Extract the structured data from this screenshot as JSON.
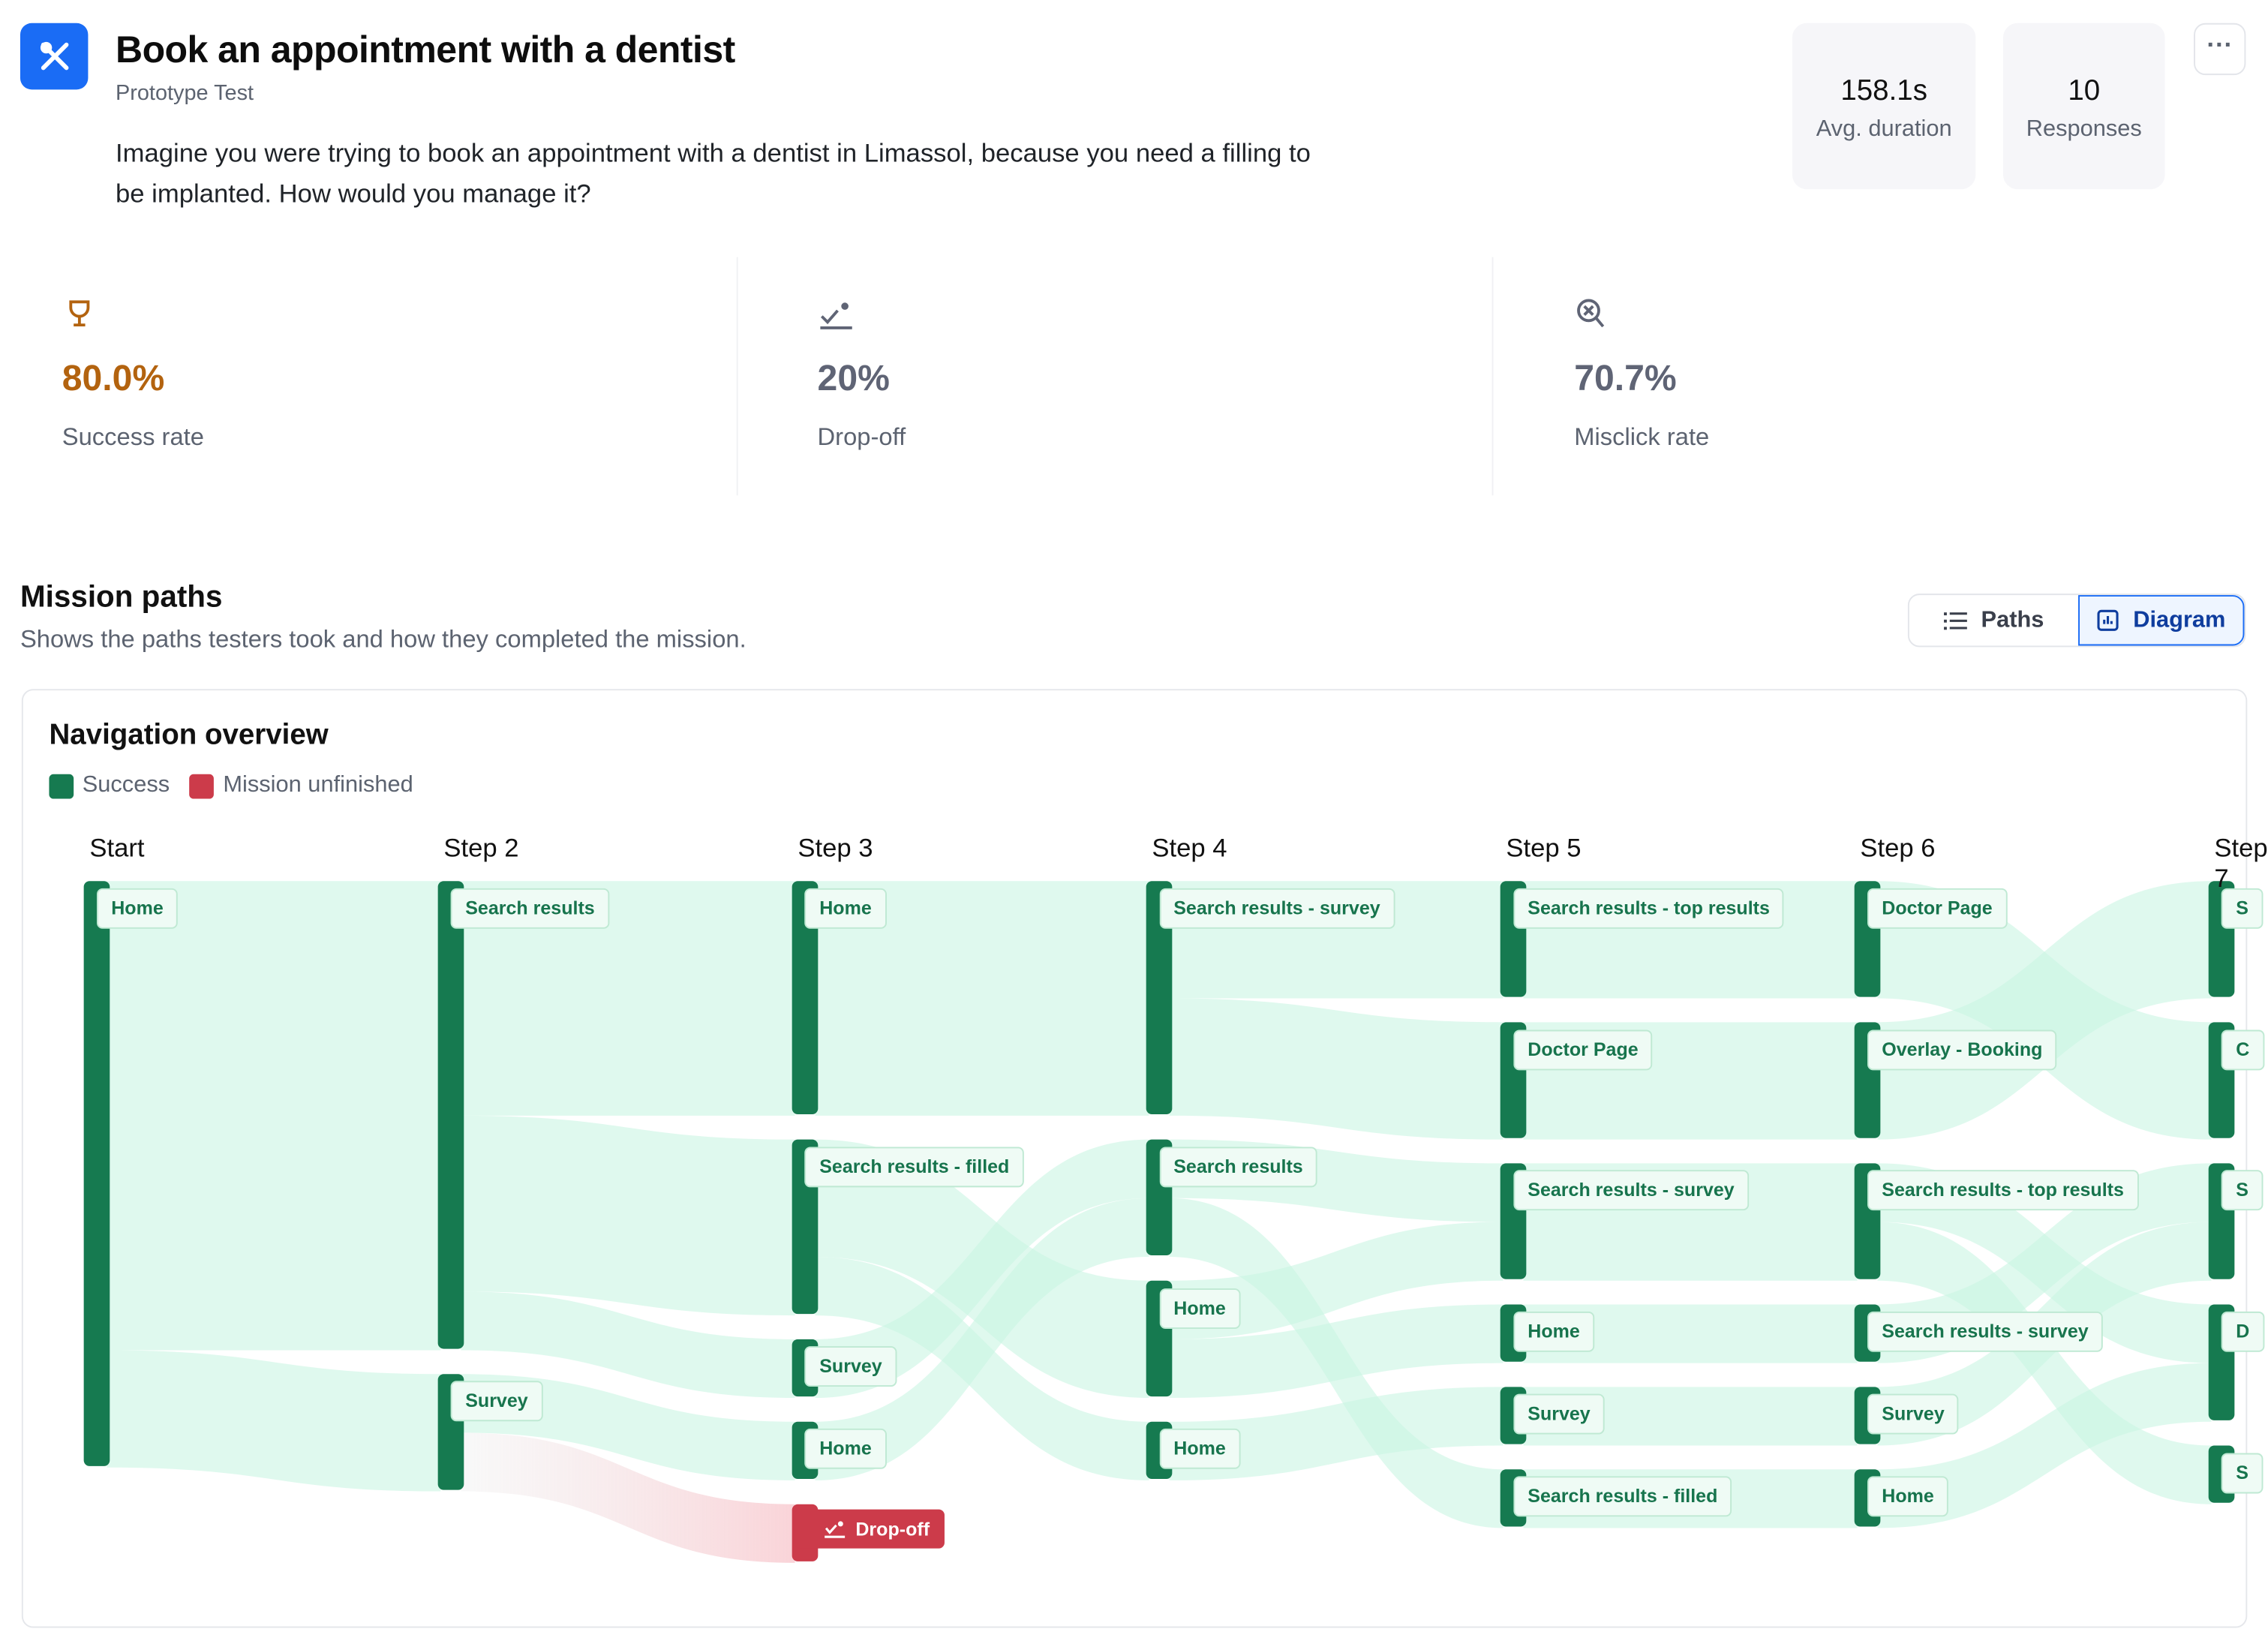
{
  "header": {
    "title": "Book an appointment with a dentist",
    "subtitle": "Prototype Test",
    "description": "Imagine you were trying to book an appointment with a dentist in Limassol, because you need a filling to be implanted. How would you manage it?",
    "logo_icon": "crossed-tools-icon",
    "brand_color": "#1a6cf5"
  },
  "stats": [
    {
      "value": "158.1s",
      "label": "Avg. duration"
    },
    {
      "value": "10",
      "label": "Responses"
    }
  ],
  "more_button": "···",
  "metrics": [
    {
      "icon": "trophy-icon",
      "value": "80.0%",
      "label": "Success rate",
      "color": "#b3630f"
    },
    {
      "icon": "drop-off-icon",
      "value": "20%",
      "label": "Drop-off",
      "color": "#5f6475"
    },
    {
      "icon": "misclick-icon",
      "value": "70.7%",
      "label": "Misclick rate",
      "color": "#5f6475"
    }
  ],
  "mission_paths": {
    "title": "Mission paths",
    "subtitle": "Shows the paths testers took and how they completed the mission.",
    "view_toggle": [
      {
        "label": "Paths",
        "icon": "list-icon",
        "selected": false
      },
      {
        "label": "Diagram",
        "icon": "chart-icon",
        "selected": true
      }
    ]
  },
  "diagram": {
    "title": "Navigation overview",
    "legend": [
      {
        "label": "Success",
        "color": "#167a50"
      },
      {
        "label": "Mission unfinished",
        "color": "#cc3b4a"
      }
    ],
    "link_color": "#c9f5e2",
    "dropoff_link_color": "#f7d4d8",
    "columns": [
      {
        "label": "Start",
        "nodes": [
          {
            "id": "a0",
            "label": "Home",
            "value": 10
          }
        ]
      },
      {
        "label": "Step 2",
        "nodes": [
          {
            "id": "b0",
            "label": "Search results",
            "value": 8
          },
          {
            "id": "b1",
            "label": "Survey",
            "value": 2
          }
        ]
      },
      {
        "label": "Step 3",
        "nodes": [
          {
            "id": "c0",
            "label": "Home",
            "value": 4
          },
          {
            "id": "c1",
            "label": "Search results - filled",
            "value": 3
          },
          {
            "id": "c2",
            "label": "Survey",
            "value": 1
          },
          {
            "id": "c3",
            "label": "Home",
            "value": 1
          },
          {
            "id": "c4",
            "label": "Drop-off",
            "value": 1,
            "dropoff": true
          }
        ]
      },
      {
        "label": "Step 4",
        "nodes": [
          {
            "id": "d0",
            "label": "Search results - survey",
            "value": 4
          },
          {
            "id": "d1",
            "label": "Search results",
            "value": 2
          },
          {
            "id": "d2",
            "label": "Home",
            "value": 2
          },
          {
            "id": "d3",
            "label": "Home",
            "value": 1
          }
        ]
      },
      {
        "label": "Step 5",
        "nodes": [
          {
            "id": "e0",
            "label": "Search results - top results",
            "value": 2
          },
          {
            "id": "e1",
            "label": "Doctor Page",
            "value": 2
          },
          {
            "id": "e2",
            "label": "Search results - survey",
            "value": 2
          },
          {
            "id": "e3",
            "label": "Home",
            "value": 1
          },
          {
            "id": "e4",
            "label": "Survey",
            "value": 1
          },
          {
            "id": "e5",
            "label": "Search results - filled",
            "value": 1
          }
        ]
      },
      {
        "label": "Step 6",
        "nodes": [
          {
            "id": "f0",
            "label": "Doctor Page",
            "value": 2
          },
          {
            "id": "f1",
            "label": "Overlay - Booking",
            "value": 2
          },
          {
            "id": "f2",
            "label": "Search results - top results",
            "value": 2
          },
          {
            "id": "f3",
            "label": "Search results - survey",
            "value": 1
          },
          {
            "id": "f4",
            "label": "Survey",
            "value": 1
          },
          {
            "id": "f5",
            "label": "Home",
            "value": 1
          }
        ]
      },
      {
        "label": "Step 7",
        "nodes": [
          {
            "id": "g0",
            "label": "S",
            "value": 2
          },
          {
            "id": "g1",
            "label": "C",
            "value": 2
          },
          {
            "id": "g2",
            "label": "S",
            "value": 2
          },
          {
            "id": "g3",
            "label": "D",
            "value": 2
          },
          {
            "id": "g4",
            "label": "S",
            "value": 1
          }
        ]
      }
    ],
    "links": [
      [
        "a0",
        "b0",
        8
      ],
      [
        "a0",
        "b1",
        2
      ],
      [
        "b0",
        "c0",
        4
      ],
      [
        "b0",
        "c1",
        3
      ],
      [
        "b0",
        "c2",
        1
      ],
      [
        "b1",
        "c3",
        1
      ],
      [
        "b1",
        "c4",
        1
      ],
      [
        "c0",
        "d0",
        4
      ],
      [
        "c1",
        "d2",
        2
      ],
      [
        "c1",
        "d3",
        1
      ],
      [
        "c2",
        "d1",
        1
      ],
      [
        "c3",
        "d1",
        1
      ],
      [
        "d0",
        "e0",
        2
      ],
      [
        "d0",
        "e1",
        2
      ],
      [
        "d1",
        "e2",
        1
      ],
      [
        "d1",
        "e5",
        1
      ],
      [
        "d2",
        "e2",
        1
      ],
      [
        "d2",
        "e3",
        1
      ],
      [
        "d3",
        "e4",
        1
      ],
      [
        "e0",
        "f0",
        2
      ],
      [
        "e1",
        "f1",
        2
      ],
      [
        "e2",
        "f2",
        2
      ],
      [
        "e3",
        "f3",
        1
      ],
      [
        "e4",
        "f4",
        1
      ],
      [
        "e5",
        "f5",
        1
      ],
      [
        "f0",
        "g1",
        2
      ],
      [
        "f1",
        "g0",
        2
      ],
      [
        "f2",
        "g3",
        1
      ],
      [
        "f2",
        "g4",
        1
      ],
      [
        "f3",
        "g2",
        1
      ],
      [
        "f4",
        "g2",
        1
      ],
      [
        "f5",
        "g3",
        1
      ]
    ]
  }
}
